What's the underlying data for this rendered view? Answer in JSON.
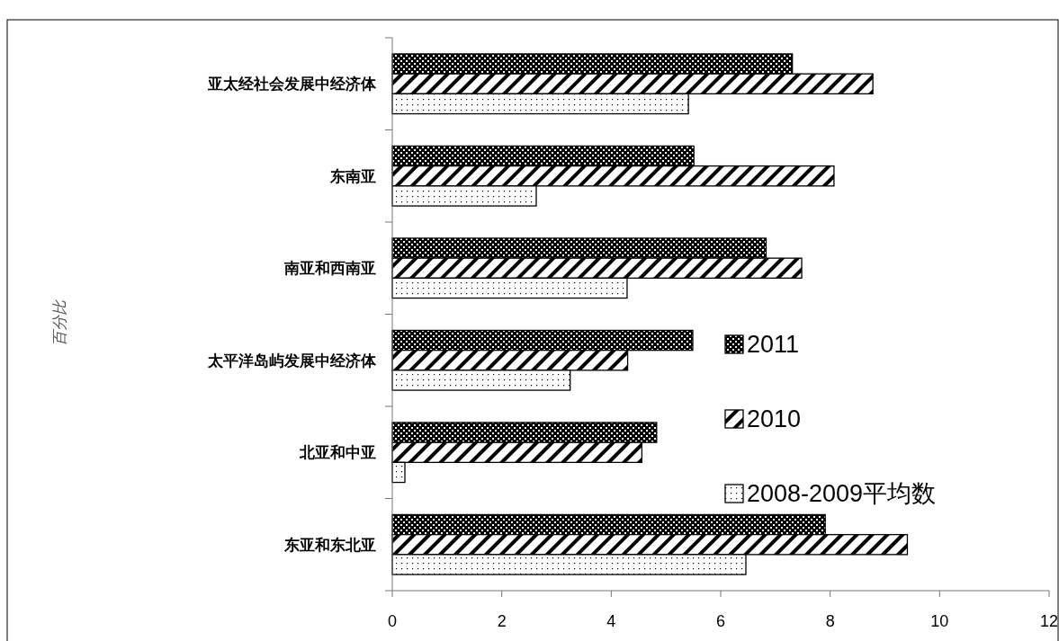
{
  "chart_data": {
    "type": "bar",
    "orientation": "horizontal",
    "annotations": [
      "百分比"
    ],
    "categories": [
      "亚太经社会发展中经济体",
      "东南亚",
      "南亚和西南亚",
      "太平洋岛屿发展中经济体",
      "北亚和中亚",
      "东亚和东北亚"
    ],
    "series": [
      {
        "name": "2011",
        "color": "#000000",
        "values": [
          7.31,
          5.51,
          6.83,
          5.49,
          4.83,
          7.91
        ]
      },
      {
        "name": "2010",
        "color": "#000000",
        "values": [
          8.78,
          8.07,
          7.48,
          4.3,
          4.56,
          9.41
        ]
      },
      {
        "name": "2008-2009平均数",
        "color": "#000000",
        "values": [
          5.41,
          2.63,
          4.29,
          3.25,
          0.23,
          6.46
        ]
      }
    ],
    "xlim": [
      0,
      12
    ],
    "xticks": [
      0,
      2,
      4,
      6,
      8,
      10,
      12
    ],
    "grid": false,
    "legend": "right"
  }
}
